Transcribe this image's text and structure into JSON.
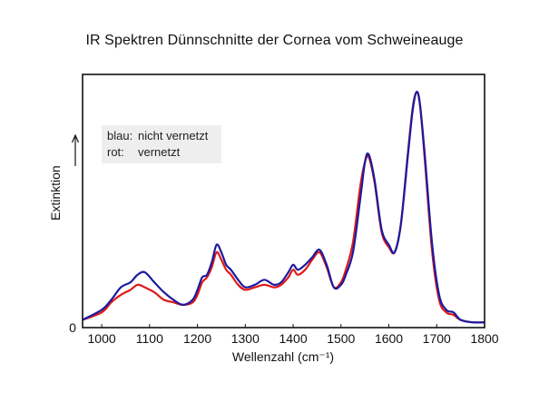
{
  "title": "IR Spektren Dünnschnitte der Cornea vom Schweineauge",
  "legend": {
    "items": [
      {
        "prefix": "blau:",
        "text": "nicht vernetzt",
        "color": "#1a1aa0"
      },
      {
        "prefix": "rot:",
        "text": "vernetzt",
        "color": "#e01818"
      }
    ],
    "background": "#eeeeee"
  },
  "chart_data": {
    "type": "line",
    "title": "IR Spektren Dünnschnitte der Cornea vom Schweineauge",
    "xlabel": "Wellenzahl (cm⁻¹)",
    "ylabel": "Extinktion",
    "xlim": [
      960,
      1800
    ],
    "ylim": [
      0,
      1
    ],
    "xticks": [
      1000,
      1100,
      1200,
      1300,
      1400,
      1500,
      1600,
      1700,
      1800
    ],
    "y_zero_label": "0",
    "grid": false,
    "legend_position": "top-left",
    "series": [
      {
        "name": "nicht vernetzt",
        "color": "#1a1aa0",
        "x": [
          960,
          1000,
          1020,
          1040,
          1060,
          1075,
          1090,
          1110,
          1130,
          1150,
          1170,
          1190,
          1200,
          1210,
          1220,
          1230,
          1240,
          1250,
          1260,
          1270,
          1285,
          1300,
          1320,
          1340,
          1360,
          1375,
          1390,
          1400,
          1410,
          1425,
          1440,
          1455,
          1470,
          1485,
          1500,
          1510,
          1525,
          1540,
          1550,
          1558,
          1570,
          1585,
          1600,
          1612,
          1625,
          1640,
          1650,
          1658,
          1665,
          1675,
          1690,
          1705,
          1720,
          1735,
          1750,
          1775,
          1800
        ],
        "y": [
          0.02,
          0.06,
          0.1,
          0.15,
          0.17,
          0.2,
          0.21,
          0.17,
          0.13,
          0.1,
          0.08,
          0.1,
          0.14,
          0.19,
          0.2,
          0.25,
          0.32,
          0.29,
          0.24,
          0.22,
          0.18,
          0.15,
          0.16,
          0.18,
          0.16,
          0.17,
          0.21,
          0.24,
          0.22,
          0.24,
          0.27,
          0.3,
          0.24,
          0.15,
          0.16,
          0.2,
          0.29,
          0.5,
          0.65,
          0.68,
          0.58,
          0.38,
          0.32,
          0.29,
          0.4,
          0.68,
          0.86,
          0.93,
          0.88,
          0.68,
          0.33,
          0.12,
          0.06,
          0.05,
          0.02,
          0.01,
          0.01
        ]
      },
      {
        "name": "vernetzt",
        "color": "#e01818",
        "x": [
          960,
          1000,
          1020,
          1040,
          1060,
          1075,
          1090,
          1110,
          1130,
          1150,
          1170,
          1190,
          1200,
          1210,
          1220,
          1230,
          1240,
          1250,
          1260,
          1270,
          1285,
          1300,
          1320,
          1340,
          1360,
          1375,
          1390,
          1400,
          1410,
          1425,
          1440,
          1455,
          1470,
          1485,
          1500,
          1510,
          1525,
          1540,
          1550,
          1558,
          1570,
          1585,
          1600,
          1612,
          1625,
          1640,
          1650,
          1658,
          1665,
          1675,
          1690,
          1705,
          1720,
          1735,
          1750,
          1775,
          1800
        ],
        "y": [
          0.02,
          0.05,
          0.09,
          0.12,
          0.14,
          0.16,
          0.15,
          0.13,
          0.1,
          0.09,
          0.08,
          0.09,
          0.12,
          0.17,
          0.19,
          0.23,
          0.29,
          0.26,
          0.22,
          0.2,
          0.16,
          0.14,
          0.15,
          0.16,
          0.15,
          0.16,
          0.19,
          0.22,
          0.2,
          0.22,
          0.26,
          0.29,
          0.23,
          0.15,
          0.17,
          0.22,
          0.33,
          0.55,
          0.65,
          0.67,
          0.57,
          0.37,
          0.31,
          0.29,
          0.4,
          0.69,
          0.87,
          0.93,
          0.88,
          0.66,
          0.3,
          0.1,
          0.05,
          0.04,
          0.02,
          0.01,
          0.01
        ]
      }
    ]
  }
}
